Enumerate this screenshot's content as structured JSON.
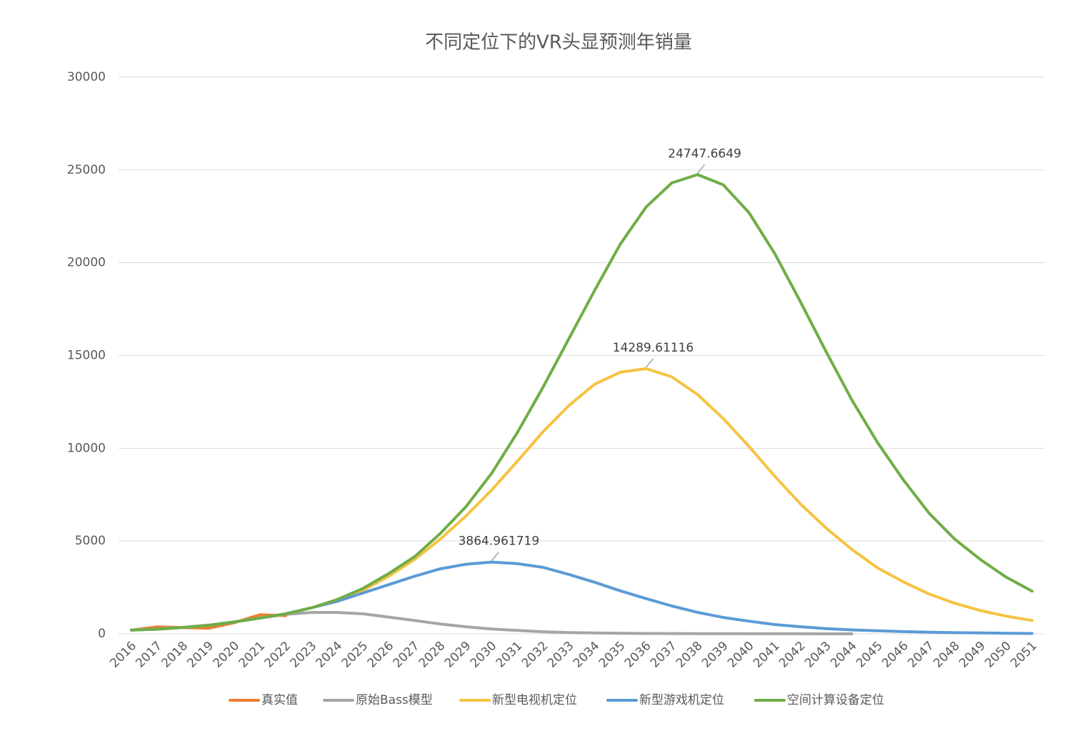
{
  "chart_data": {
    "type": "line",
    "title": "不同定位下的VR头显预测年销量",
    "categories": [
      "2016",
      "2017",
      "2018",
      "2019",
      "2020",
      "2021",
      "2022",
      "2023",
      "2024",
      "2025",
      "2026",
      "2027",
      "2028",
      "2029",
      "2030",
      "2031",
      "2032",
      "2033",
      "2034",
      "2035",
      "2036",
      "2037",
      "2038",
      "2039",
      "2040",
      "2041",
      "2042",
      "2043",
      "2044",
      "2045",
      "2046",
      "2047",
      "2048",
      "2049",
      "2050",
      "2051"
    ],
    "ylim": [
      0,
      30000
    ],
    "yticks": [
      0,
      5000,
      10000,
      15000,
      20000,
      25000,
      30000
    ],
    "grid": true,
    "legend": "bottom",
    "series": [
      {
        "name": "真实值",
        "color": "#ED7D31",
        "values": [
          200,
          370,
          340,
          300,
          600,
          1030,
          980,
          null,
          null,
          null,
          null,
          null,
          null,
          null,
          null,
          null,
          null,
          null,
          null,
          null,
          null,
          null,
          null,
          null,
          null,
          null,
          null,
          null,
          null,
          null,
          null,
          null,
          null,
          null,
          null,
          null
        ]
      },
      {
        "name": "原始Bass模型",
        "color": "#A5A5A5",
        "values": [
          200,
          260,
          350,
          470,
          640,
          850,
          1050,
          1150,
          1150,
          1080,
          900,
          720,
          530,
          380,
          260,
          180,
          110,
          70,
          50,
          30,
          20,
          15,
          10,
          7,
          5,
          3,
          2,
          1,
          1,
          null,
          null,
          null,
          null,
          null,
          null,
          null
        ]
      },
      {
        "name": "新型电视机定位",
        "color": "#F5C342",
        "values": [
          200,
          250,
          340,
          460,
          640,
          850,
          1080,
          1400,
          1800,
          2350,
          3100,
          4000,
          5100,
          6350,
          7750,
          9300,
          10900,
          12300,
          13450,
          14100,
          14289.61116,
          13850,
          12900,
          11600,
          10100,
          8500,
          7000,
          5700,
          4550,
          3550,
          2800,
          2150,
          1650,
          1250,
          950,
          720
        ],
        "value_labels": [
          null,
          null,
          null,
          null,
          null,
          null,
          null,
          null,
          null,
          null,
          null,
          null,
          null,
          null,
          null,
          null,
          null,
          null,
          null,
          null,
          "14289.61116",
          null,
          null,
          null,
          null,
          null,
          null,
          null,
          null,
          null,
          null,
          null,
          null,
          null,
          null,
          null
        ]
      },
      {
        "name": "新型游戏机定位",
        "color": "#5B9BD5",
        "values": [
          200,
          250,
          340,
          460,
          640,
          850,
          1080,
          1400,
          1750,
          2200,
          2650,
          3100,
          3500,
          3750,
          3864.961719,
          3780,
          3580,
          3200,
          2780,
          2320,
          1900,
          1500,
          1160,
          880,
          680,
          500,
          380,
          280,
          210,
          160,
          120,
          90,
          60,
          50,
          30,
          20
        ],
        "value_labels": [
          null,
          null,
          null,
          null,
          null,
          null,
          null,
          null,
          null,
          null,
          null,
          null,
          null,
          null,
          "3864.961719",
          null,
          null,
          null,
          null,
          null,
          null,
          null,
          null,
          null,
          null,
          null,
          null,
          null,
          null,
          null,
          null,
          null,
          null,
          null,
          null,
          null
        ]
      },
      {
        "name": "空间计算设备定位",
        "color": "#70AD47",
        "values": [
          200,
          250,
          340,
          460,
          640,
          850,
          1080,
          1400,
          1850,
          2450,
          3250,
          4150,
          5400,
          6850,
          8650,
          10850,
          13300,
          15900,
          18500,
          21000,
          23000,
          24300,
          24747.6649,
          24200,
          22700,
          20500,
          17900,
          15200,
          12600,
          10300,
          8300,
          6500,
          5100,
          4000,
          3050,
          2300
        ],
        "value_labels": [
          null,
          null,
          null,
          null,
          null,
          null,
          null,
          null,
          null,
          null,
          null,
          null,
          null,
          null,
          null,
          null,
          null,
          null,
          null,
          null,
          null,
          null,
          "24747.6649",
          null,
          null,
          null,
          null,
          null,
          null,
          null,
          null,
          null,
          null,
          null,
          null,
          null
        ]
      }
    ]
  }
}
